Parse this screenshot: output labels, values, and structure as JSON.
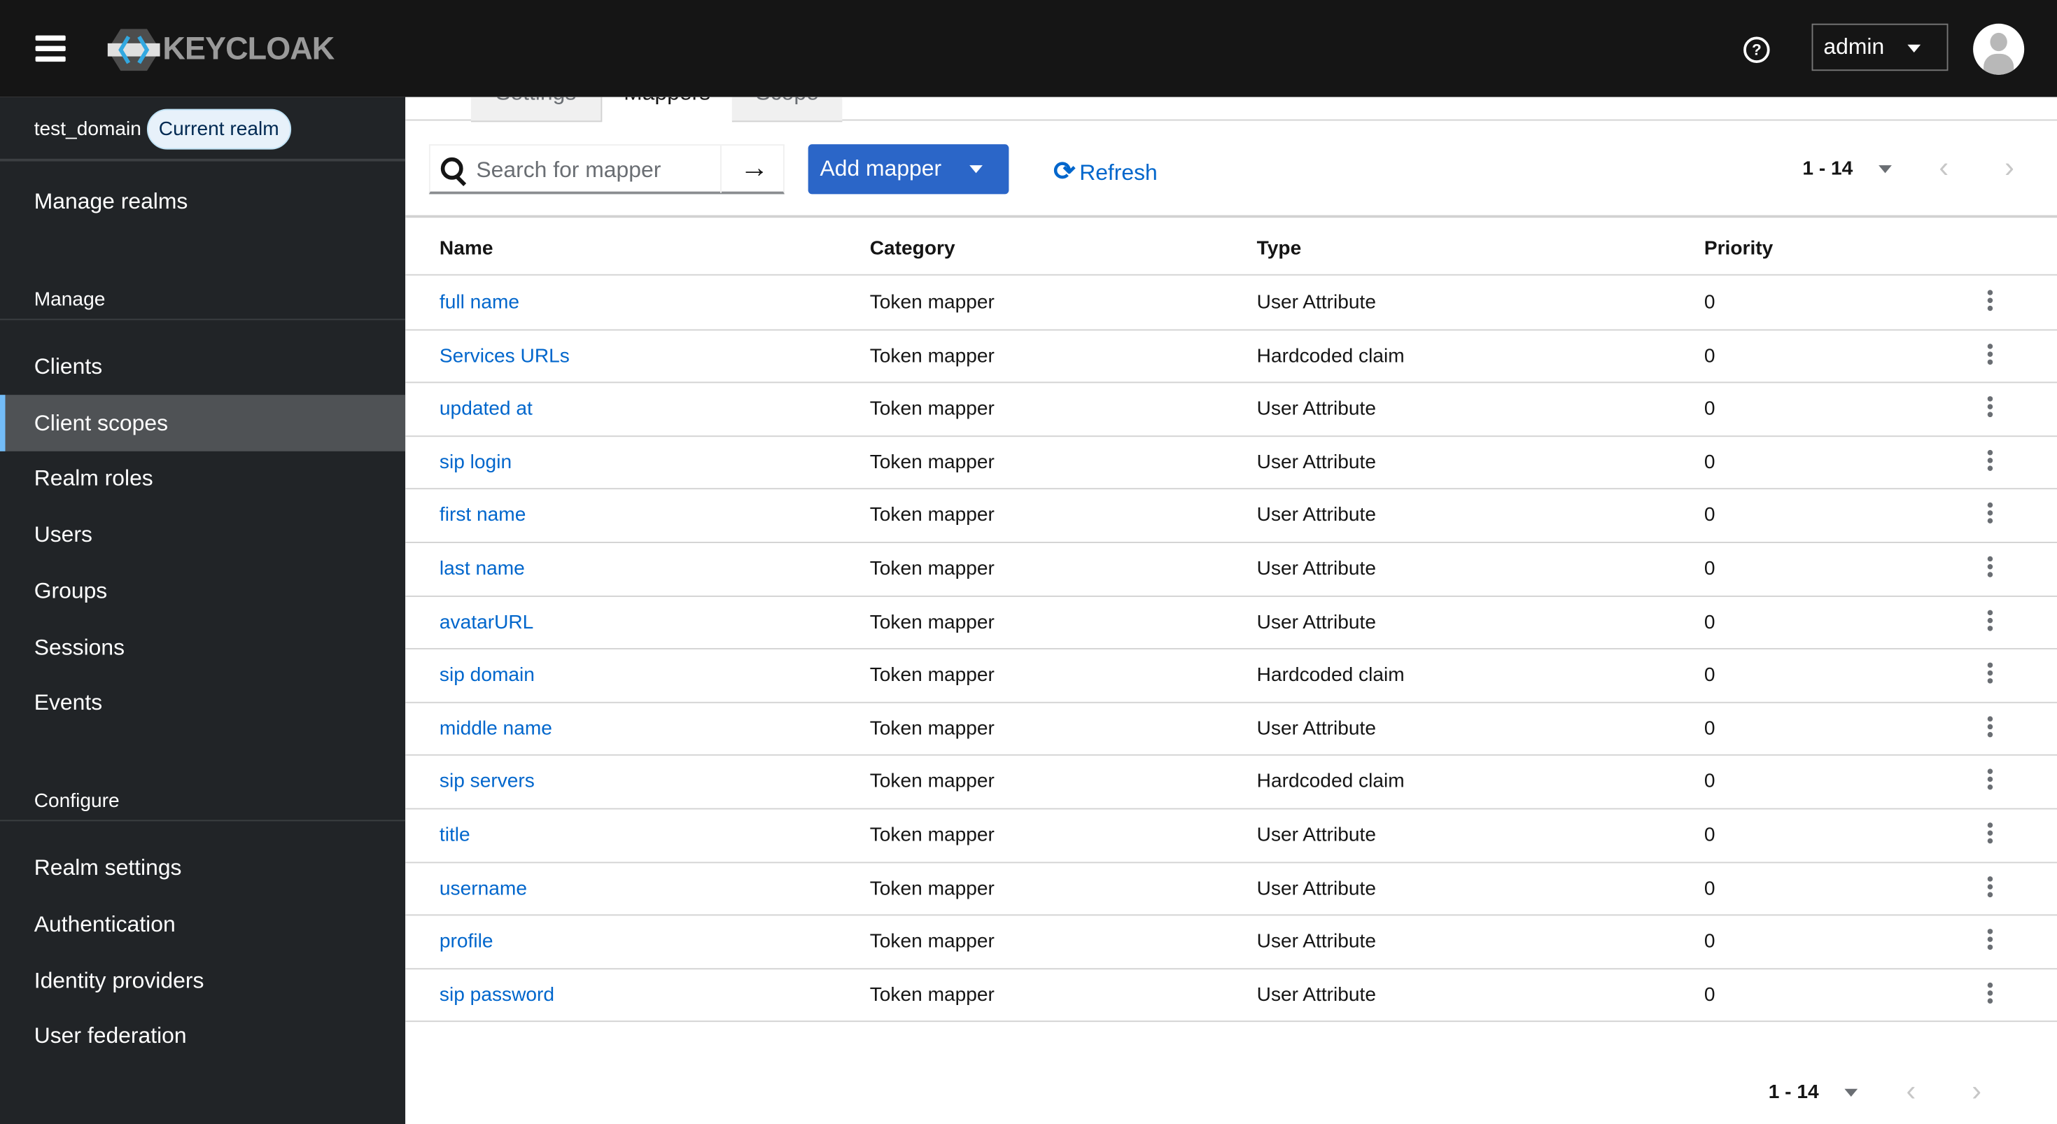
{
  "header": {
    "brand": "KEYCLOAK",
    "user": "admin",
    "colors": {
      "bar": "#151515",
      "brand_blue": "#2b66c8"
    }
  },
  "sidebar": {
    "realm": "test_domain",
    "realm_badge": "Current realm",
    "manage_realms": "Manage realms",
    "manage_title": "Manage",
    "manage_items": [
      {
        "label": "Clients"
      },
      {
        "label": "Client scopes",
        "active": true
      },
      {
        "label": "Realm roles"
      },
      {
        "label": "Users"
      },
      {
        "label": "Groups"
      },
      {
        "label": "Sessions"
      },
      {
        "label": "Events"
      }
    ],
    "configure_title": "Configure",
    "configure_items": [
      {
        "label": "Realm settings"
      },
      {
        "label": "Authentication"
      },
      {
        "label": "Identity providers"
      },
      {
        "label": "User federation"
      }
    ]
  },
  "tabs": [
    {
      "label": "Settings"
    },
    {
      "label": "Mappers",
      "active": true
    },
    {
      "label": "Scope"
    }
  ],
  "toolbar": {
    "search_placeholder": "Search for mapper",
    "search_value": "",
    "add_label": "Add mapper",
    "refresh_label": "Refresh",
    "pagination": "1 - 14"
  },
  "table": {
    "headers": [
      "Name",
      "Category",
      "Type",
      "Priority"
    ],
    "rows": [
      [
        "full name",
        "Token mapper",
        "User Attribute",
        "0"
      ],
      [
        "Services URLs",
        "Token mapper",
        "Hardcoded claim",
        "0"
      ],
      [
        "updated at",
        "Token mapper",
        "User Attribute",
        "0"
      ],
      [
        "sip login",
        "Token mapper",
        "User Attribute",
        "0"
      ],
      [
        "first name",
        "Token mapper",
        "User Attribute",
        "0"
      ],
      [
        "last name",
        "Token mapper",
        "User Attribute",
        "0"
      ],
      [
        "avatarURL",
        "Token mapper",
        "User Attribute",
        "0"
      ],
      [
        "sip domain",
        "Token mapper",
        "Hardcoded claim",
        "0"
      ],
      [
        "middle name",
        "Token mapper",
        "User Attribute",
        "0"
      ],
      [
        "sip servers",
        "Token mapper",
        "Hardcoded claim",
        "0"
      ],
      [
        "title",
        "Token mapper",
        "User Attribute",
        "0"
      ],
      [
        "username",
        "Token mapper",
        "User Attribute",
        "0"
      ],
      [
        "profile",
        "Token mapper",
        "User Attribute",
        "0"
      ],
      [
        "sip password",
        "Token mapper",
        "User Attribute",
        "0"
      ]
    ]
  },
  "footer": {
    "pagination": "1 - 14"
  }
}
